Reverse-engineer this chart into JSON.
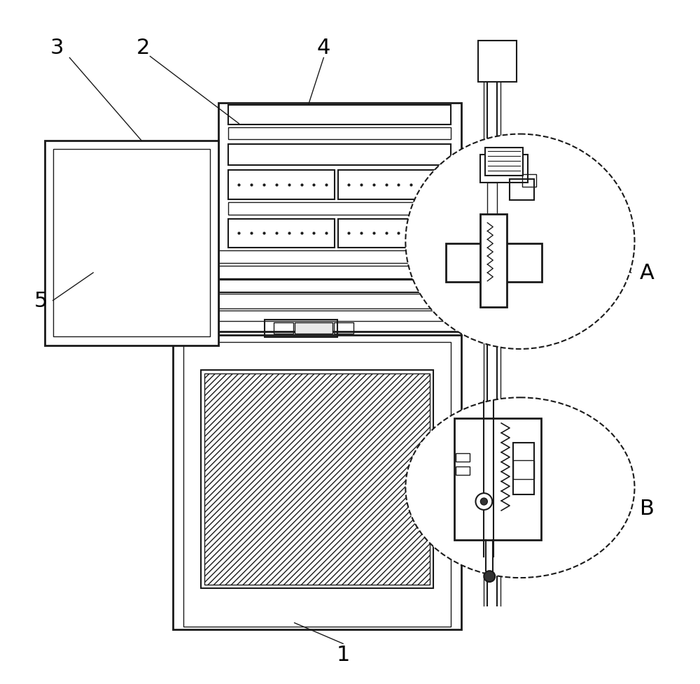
{
  "bg_color": "#ffffff",
  "line_color": "#1a1a1a",
  "label_color": "#000000",
  "fig_width": 10.0,
  "fig_height": 9.79
}
